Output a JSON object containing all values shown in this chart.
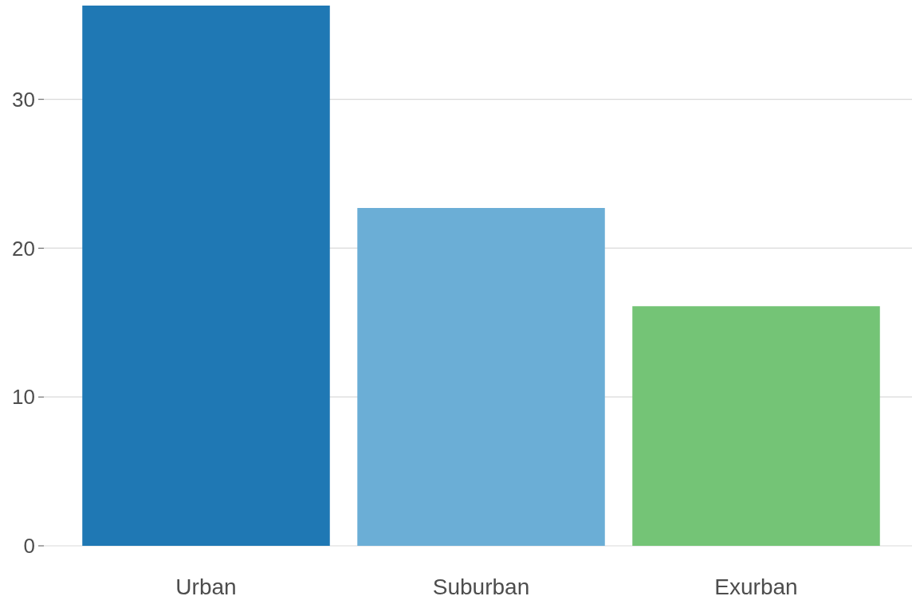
{
  "chart_data": {
    "type": "bar",
    "categories": [
      "Urban",
      "Suburban",
      "Exurban"
    ],
    "values": [
      36.3,
      22.7,
      16.1
    ],
    "colors": [
      "#1f78b4",
      "#6baed6",
      "#74c476"
    ],
    "ylim": [
      0,
      36.3
    ],
    "yticks": [
      0,
      10,
      20,
      30
    ],
    "grid": "y"
  }
}
